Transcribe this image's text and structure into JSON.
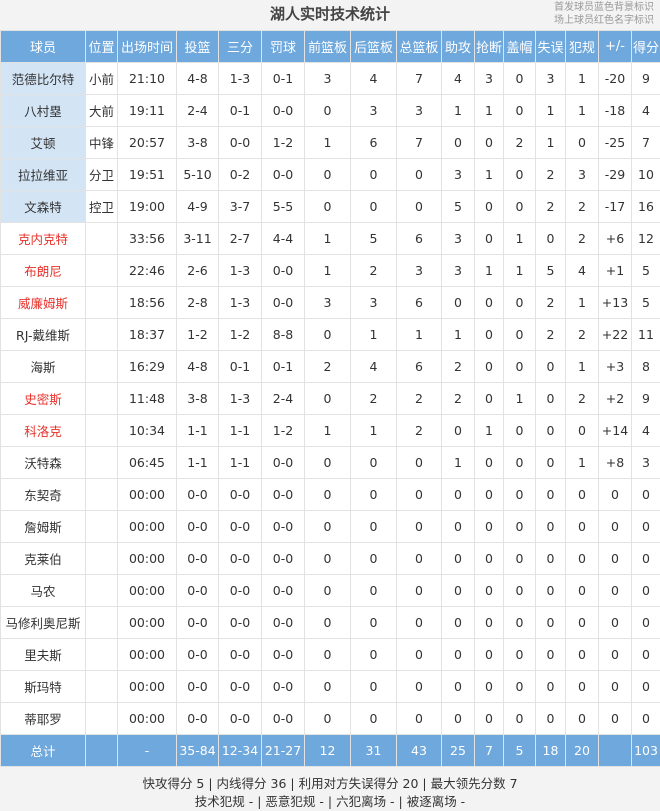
{
  "title": "湖人实时技术统计",
  "legend": {
    "lines": [
      "首发球员蓝色背景标识",
      "场上球员红色名字标识"
    ],
    "starter_bg": "#d3e4f5",
    "on_court_color": "#e8322b"
  },
  "table": {
    "header": [
      "球员",
      "位置",
      "出场时间",
      "投篮",
      "三分",
      "罚球",
      "前篮板",
      "后篮板",
      "总篮板",
      "助攻",
      "抢断",
      "盖帽",
      "失误",
      "犯规",
      "+/-",
      "得分"
    ],
    "rows": [
      {
        "starter": true,
        "on_court": false,
        "cells": [
          "范德比尔特",
          "小前",
          "21:10",
          "4-8",
          "1-3",
          "0-1",
          "3",
          "4",
          "7",
          "4",
          "3",
          "0",
          "3",
          "1",
          "-20",
          "9"
        ]
      },
      {
        "starter": true,
        "on_court": false,
        "cells": [
          "八村塁",
          "大前",
          "19:11",
          "2-4",
          "0-1",
          "0-0",
          "0",
          "3",
          "3",
          "1",
          "1",
          "0",
          "1",
          "1",
          "-18",
          "4"
        ]
      },
      {
        "starter": true,
        "on_court": false,
        "cells": [
          "艾顿",
          "中锋",
          "20:57",
          "3-8",
          "0-0",
          "1-2",
          "1",
          "6",
          "7",
          "0",
          "0",
          "2",
          "1",
          "0",
          "-25",
          "7"
        ]
      },
      {
        "starter": true,
        "on_court": false,
        "cells": [
          "拉拉维亚",
          "分卫",
          "19:51",
          "5-10",
          "0-2",
          "0-0",
          "0",
          "0",
          "0",
          "3",
          "1",
          "0",
          "2",
          "3",
          "-29",
          "10"
        ]
      },
      {
        "starter": true,
        "on_court": false,
        "cells": [
          "文森特",
          "控卫",
          "19:00",
          "4-9",
          "3-7",
          "5-5",
          "0",
          "0",
          "0",
          "5",
          "0",
          "0",
          "2",
          "2",
          "-17",
          "16"
        ]
      },
      {
        "starter": false,
        "on_court": true,
        "cells": [
          "克内克特",
          null,
          "33:56",
          "3-11",
          "2-7",
          "4-4",
          "1",
          "5",
          "6",
          "3",
          "0",
          "1",
          "0",
          "2",
          "+6",
          "12"
        ]
      },
      {
        "starter": false,
        "on_court": true,
        "cells": [
          "布朗尼",
          null,
          "22:46",
          "2-6",
          "1-3",
          "0-0",
          "1",
          "2",
          "3",
          "3",
          "1",
          "1",
          "5",
          "4",
          "+1",
          "5"
        ]
      },
      {
        "starter": false,
        "on_court": true,
        "cells": [
          "威廉姆斯",
          null,
          "18:56",
          "2-8",
          "1-3",
          "0-0",
          "3",
          "3",
          "6",
          "0",
          "0",
          "0",
          "2",
          "1",
          "+13",
          "5"
        ]
      },
      {
        "starter": false,
        "on_court": false,
        "cells": [
          "RJ-戴维斯",
          null,
          "18:37",
          "1-2",
          "1-2",
          "8-8",
          "0",
          "1",
          "1",
          "1",
          "0",
          "0",
          "2",
          "2",
          "+22",
          "11"
        ]
      },
      {
        "starter": false,
        "on_court": false,
        "cells": [
          "海斯",
          null,
          "16:29",
          "4-8",
          "0-1",
          "0-1",
          "2",
          "4",
          "6",
          "2",
          "0",
          "0",
          "0",
          "1",
          "+3",
          "8"
        ]
      },
      {
        "starter": false,
        "on_court": true,
        "cells": [
          "史密斯",
          null,
          "11:48",
          "3-8",
          "1-3",
          "2-4",
          "0",
          "2",
          "2",
          "2",
          "0",
          "1",
          "0",
          "2",
          "+2",
          "9"
        ]
      },
      {
        "starter": false,
        "on_court": true,
        "cells": [
          "科洛克",
          null,
          "10:34",
          "1-1",
          "1-1",
          "1-2",
          "1",
          "1",
          "2",
          "0",
          "1",
          "0",
          "0",
          "0",
          "+14",
          "4"
        ]
      },
      {
        "starter": false,
        "on_court": false,
        "cells": [
          "沃特森",
          null,
          "06:45",
          "1-1",
          "1-1",
          "0-0",
          "0",
          "0",
          "0",
          "1",
          "0",
          "0",
          "0",
          "1",
          "+8",
          "3"
        ]
      },
      {
        "starter": false,
        "on_court": false,
        "cells": [
          "东契奇",
          null,
          "00:00",
          "0-0",
          "0-0",
          "0-0",
          "0",
          "0",
          "0",
          "0",
          "0",
          "0",
          "0",
          "0",
          "0",
          "0"
        ]
      },
      {
        "starter": false,
        "on_court": false,
        "cells": [
          "詹姆斯",
          null,
          "00:00",
          "0-0",
          "0-0",
          "0-0",
          "0",
          "0",
          "0",
          "0",
          "0",
          "0",
          "0",
          "0",
          "0",
          "0"
        ]
      },
      {
        "starter": false,
        "on_court": false,
        "cells": [
          "克莱伯",
          null,
          "00:00",
          "0-0",
          "0-0",
          "0-0",
          "0",
          "0",
          "0",
          "0",
          "0",
          "0",
          "0",
          "0",
          "0",
          "0"
        ]
      },
      {
        "starter": false,
        "on_court": false,
        "cells": [
          "马农",
          null,
          "00:00",
          "0-0",
          "0-0",
          "0-0",
          "0",
          "0",
          "0",
          "0",
          "0",
          "0",
          "0",
          "0",
          "0",
          "0"
        ]
      },
      {
        "starter": false,
        "on_court": false,
        "cells": [
          "马修利奥尼斯",
          null,
          "00:00",
          "0-0",
          "0-0",
          "0-0",
          "0",
          "0",
          "0",
          "0",
          "0",
          "0",
          "0",
          "0",
          "0",
          "0"
        ]
      },
      {
        "starter": false,
        "on_court": false,
        "cells": [
          "里夫斯",
          null,
          "00:00",
          "0-0",
          "0-0",
          "0-0",
          "0",
          "0",
          "0",
          "0",
          "0",
          "0",
          "0",
          "0",
          "0",
          "0"
        ]
      },
      {
        "starter": false,
        "on_court": false,
        "cells": [
          "斯玛特",
          null,
          "00:00",
          "0-0",
          "0-0",
          "0-0",
          "0",
          "0",
          "0",
          "0",
          "0",
          "0",
          "0",
          "0",
          "0",
          "0"
        ]
      },
      {
        "starter": false,
        "on_court": false,
        "cells": [
          "蒂耶罗",
          null,
          "00:00",
          "0-0",
          "0-0",
          "0-0",
          "0",
          "0",
          "0",
          "0",
          "0",
          "0",
          "0",
          "0",
          "0",
          "0"
        ]
      }
    ],
    "total": [
      "总计",
      null,
      "-",
      "35-84",
      "12-34",
      "21-27",
      "12",
      "31",
      "43",
      "25",
      "7",
      "5",
      "18",
      "20",
      null,
      "103"
    ]
  },
  "footer": [
    "快攻得分 5 | 内线得分 36 | 利用对方失误得分 20 | 最大领先分数 7",
    "技术犯规 - | 恶意犯规 - | 六犯离场 - | 被逐离场 -"
  ]
}
